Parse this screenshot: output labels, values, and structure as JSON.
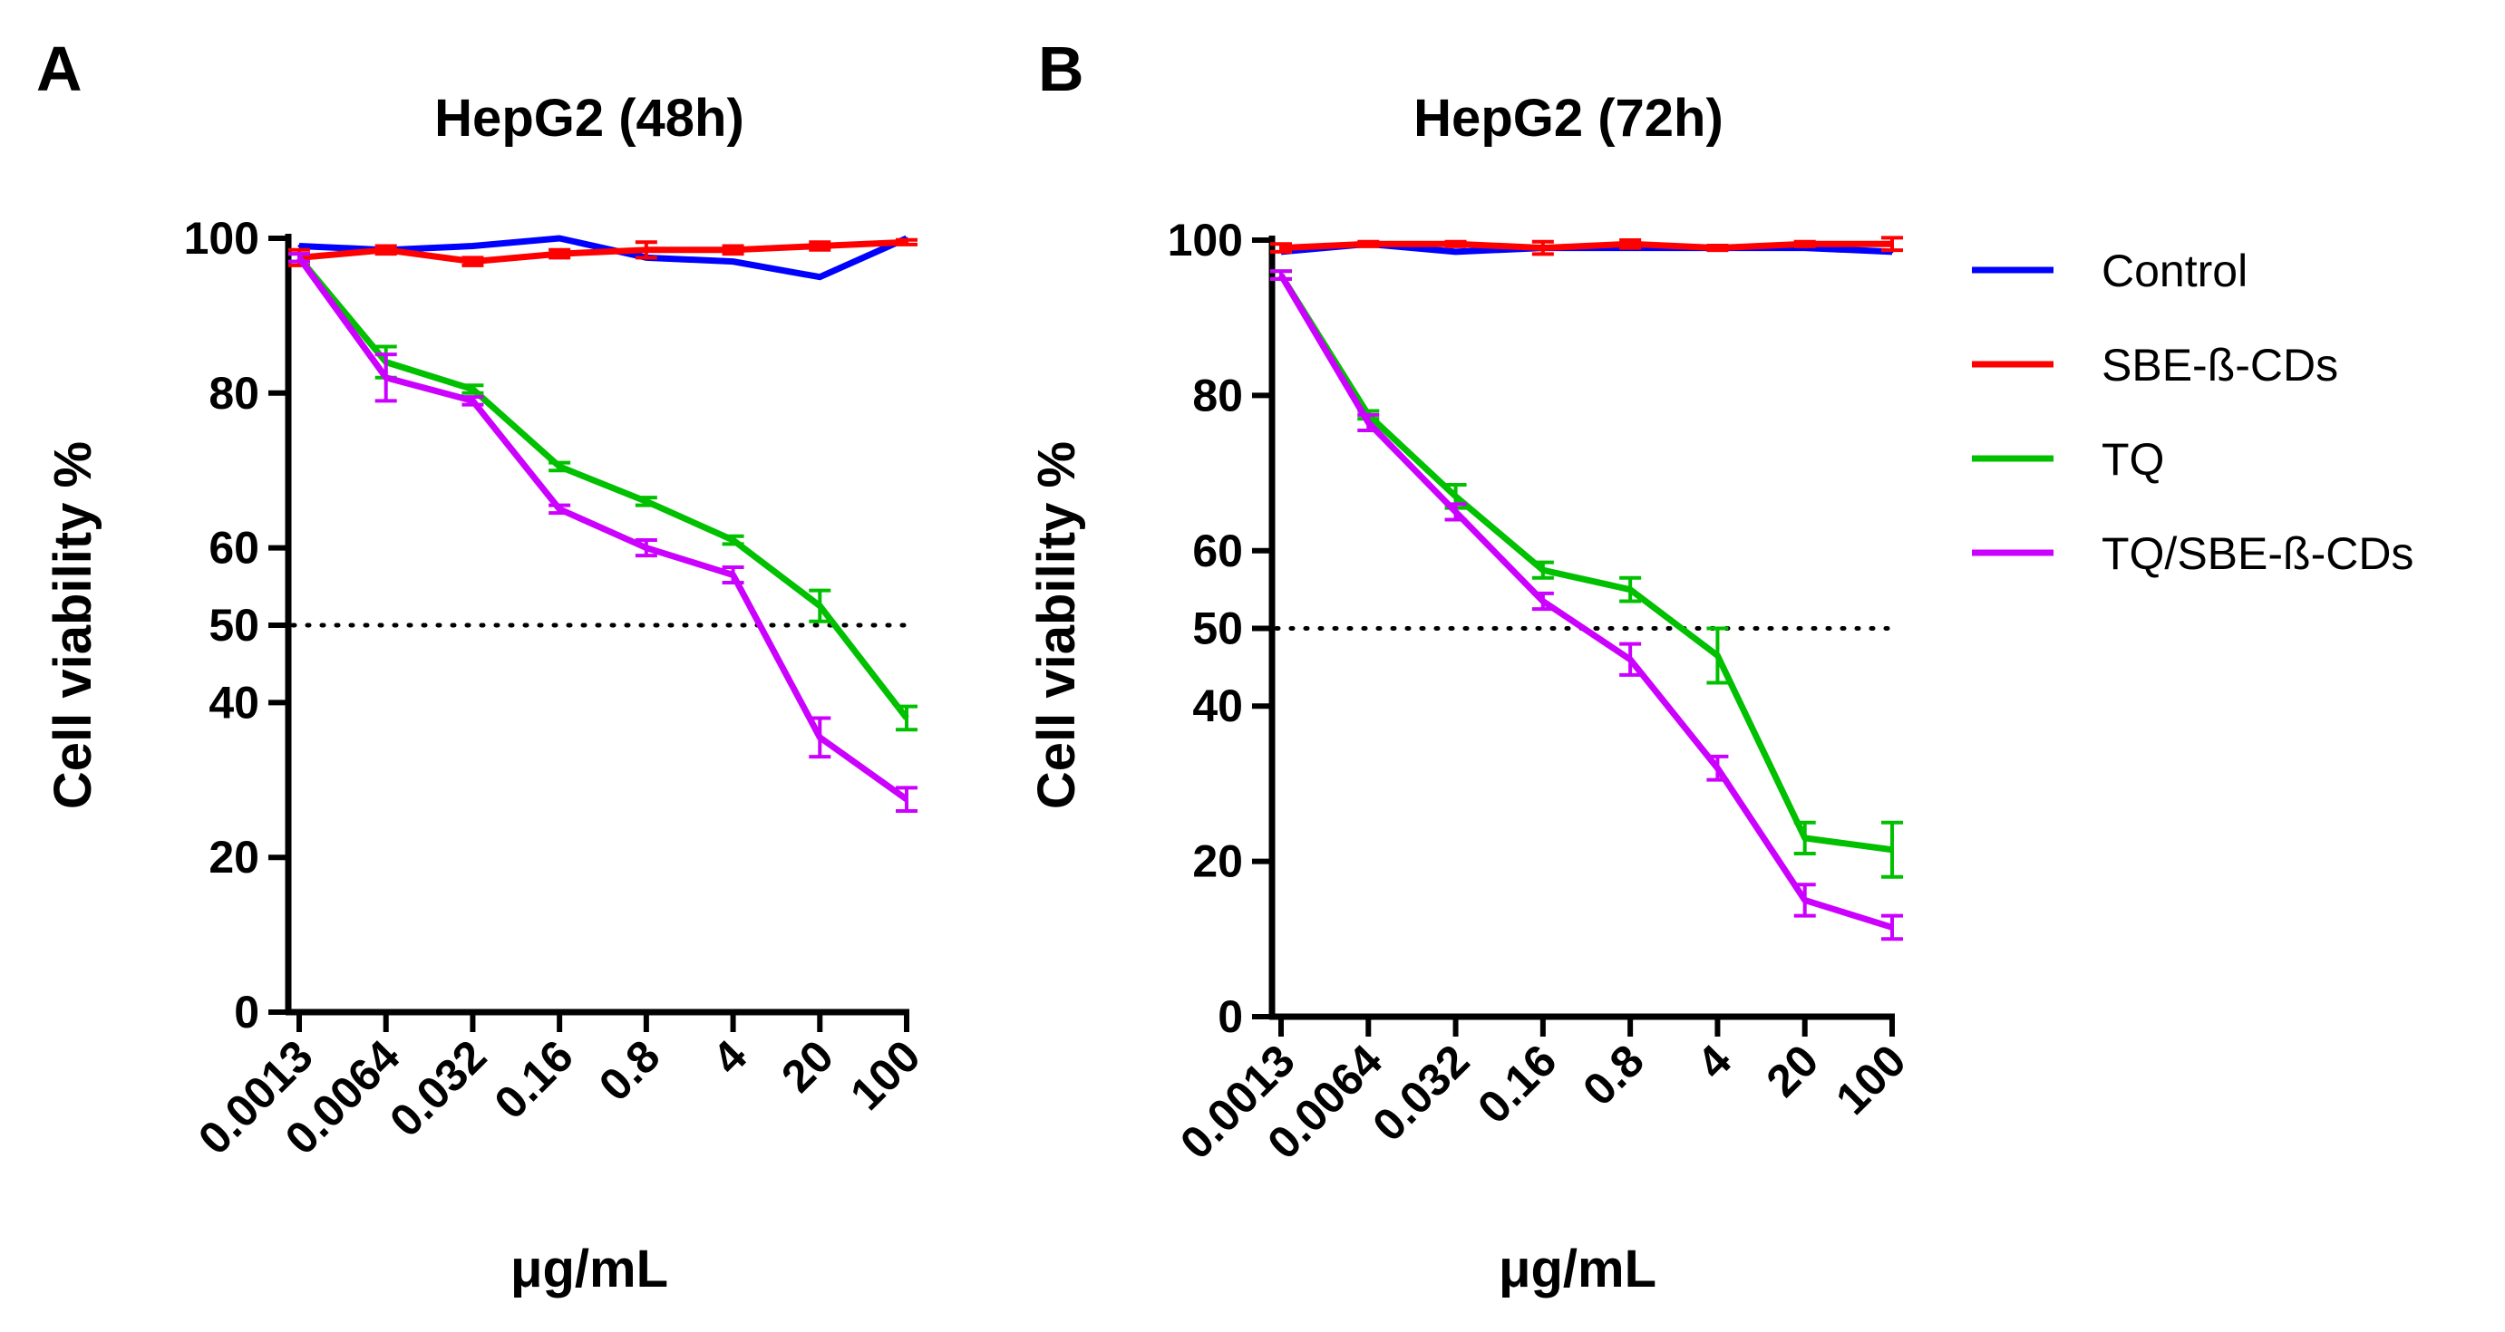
{
  "chart_data": [
    {
      "type": "line",
      "panel": "A",
      "title": "HepG2 (48h)",
      "xlabel": "μg/mL",
      "ylabel": "Cell viability %",
      "categories": [
        "0.0013",
        "0.0064",
        "0.032",
        "0.16",
        "0.8",
        "4",
        "20",
        "100"
      ],
      "yticks": [
        "0",
        "20",
        "40",
        "50",
        "60",
        "80",
        "100"
      ],
      "ylim": [
        0,
        100
      ],
      "reference_line": 50,
      "series": [
        {
          "name": "Control",
          "color": "#0000ff",
          "values": [
            99,
            98.5,
            99,
            100,
            97.5,
            97,
            95,
            100
          ],
          "errors": [
            0,
            0,
            0,
            0,
            0,
            0,
            0,
            0
          ]
        },
        {
          "name": "SBE-ß-CDs",
          "color": "#ff0000",
          "values": [
            97.5,
            98.5,
            97,
            98,
            98.5,
            98.5,
            99,
            99.5
          ],
          "errors": [
            1,
            0.5,
            0.5,
            0.5,
            1,
            0.5,
            0.5,
            0.3
          ]
        },
        {
          "name": "TQ",
          "color": "#00c000",
          "values": [
            97.5,
            84,
            80.5,
            70.5,
            66,
            61,
            52.5,
            38
          ],
          "errors": [
            0.5,
            2,
            0.5,
            0.5,
            0.5,
            0.5,
            2,
            1.5
          ]
        },
        {
          "name": "TQ/SBE-ß-CDs",
          "color": "#cc00ff",
          "values": [
            97.5,
            82,
            79,
            65,
            60,
            56.5,
            35.5,
            27.5
          ],
          "errors": [
            0.5,
            3,
            0.5,
            0.5,
            1,
            1,
            2.5,
            1.5
          ]
        }
      ]
    },
    {
      "type": "line",
      "panel": "B",
      "title": "HepG2 (72h)",
      "xlabel": "μg/mL",
      "ylabel": "Cell viability %",
      "categories": [
        "0.0013",
        "0.0064",
        "0.032",
        "0.16",
        "0.8",
        "4",
        "20",
        "100"
      ],
      "yticks": [
        "0",
        "20",
        "40",
        "50",
        "60",
        "80",
        "100"
      ],
      "ylim": [
        0,
        100
      ],
      "reference_line": 50,
      "series": [
        {
          "name": "Control",
          "color": "#0000ff",
          "values": [
            98.5,
            99.5,
            98.5,
            99,
            99,
            99,
            99,
            98.5
          ],
          "errors": [
            0,
            0,
            0,
            0,
            0,
            0,
            0,
            0
          ]
        },
        {
          "name": "SBE-ß-CDs",
          "color": "#ff0000",
          "values": [
            99,
            99.5,
            99.5,
            99,
            99.5,
            99,
            99.5,
            99.5
          ],
          "errors": [
            0.5,
            0.3,
            0.3,
            0.8,
            0.5,
            0.3,
            0.3,
            0.8
          ]
        },
        {
          "name": "TQ",
          "color": "#00c000",
          "values": [
            95.5,
            77.5,
            67,
            57.5,
            55,
            46.5,
            23,
            21.5
          ],
          "errors": [
            0.5,
            0.5,
            1.5,
            1,
            1.5,
            3.5,
            2,
            3.5
          ]
        },
        {
          "name": "TQ/SBE-ß-CDs",
          "color": "#cc00ff",
          "values": [
            95.5,
            76.5,
            65,
            53.5,
            46,
            32,
            15,
            11.5
          ],
          "errors": [
            0.5,
            1,
            1,
            1,
            2,
            1.5,
            2,
            1.5
          ]
        }
      ]
    }
  ],
  "legend": [
    {
      "label": "Control",
      "color": "#0000ff"
    },
    {
      "label": "SBE-ß-CDs",
      "color": "#ff0000"
    },
    {
      "label": "TQ",
      "color": "#00c000"
    },
    {
      "label": "TQ/SBE-ß-CDs",
      "color": "#cc00ff"
    }
  ]
}
